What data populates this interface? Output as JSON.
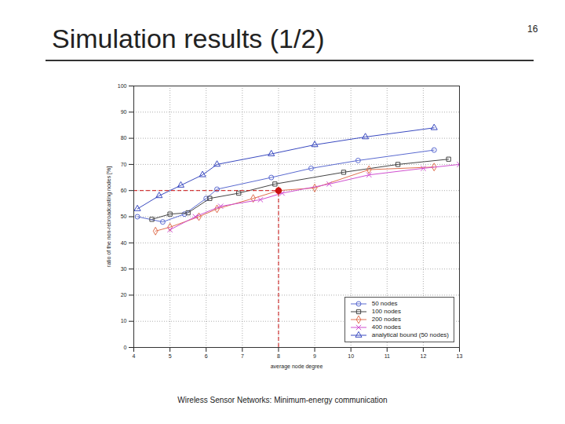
{
  "slide": {
    "title": "Simulation results (1/2)",
    "page": "16",
    "footer": "Wireless Sensor Networks: Minimum-energy communication"
  },
  "chart_data": {
    "type": "line",
    "x_label": "average node degree",
    "y_label": "ratio of the non-rebroadcasting nodes [%]",
    "xlim": [
      4,
      13
    ],
    "xticks": [
      4,
      5,
      6,
      7,
      8,
      9,
      10,
      11,
      12,
      13
    ],
    "ylim": [
      0,
      100
    ],
    "yticks": [
      0,
      10,
      20,
      30,
      40,
      50,
      60,
      70,
      80,
      90,
      100
    ],
    "grid": true,
    "legend": "lower right",
    "series": [
      {
        "name": "50 nodes",
        "color": "#5a6ad0",
        "marker": "circle",
        "line_style": "solid",
        "x": [
          4.1,
          4.8,
          5.4,
          6.0,
          6.3,
          7.8,
          8.9,
          10.2,
          12.3
        ],
        "values": [
          50,
          48,
          51,
          57,
          60.5,
          65,
          68.5,
          71.5,
          75.5
        ]
      },
      {
        "name": "100 nodes",
        "color": "#444444",
        "marker": "square",
        "line_style": "solid",
        "x": [
          4.5,
          5.0,
          5.5,
          6.1,
          6.9,
          7.9,
          9.8,
          11.3,
          12.7
        ],
        "values": [
          49,
          51,
          51.5,
          57,
          59,
          62.5,
          67,
          70,
          72
        ]
      },
      {
        "name": "200 nodes",
        "color": "#e07050",
        "marker": "diamond",
        "line_style": "solid",
        "x": [
          4.6,
          5.0,
          5.8,
          6.3,
          7.3,
          8.0,
          9.0,
          10.5,
          12.3
        ],
        "values": [
          44.5,
          46,
          50,
          53,
          57,
          60,
          61,
          68,
          69
        ]
      },
      {
        "name": "400 nodes",
        "color": "#d050d0",
        "marker": "times",
        "line_style": "solid",
        "x": [
          5.0,
          5.7,
          6.4,
          7.5,
          8.1,
          9.4,
          10.5,
          12.0,
          13.0
        ],
        "values": [
          45,
          50,
          54,
          56.5,
          59,
          62.5,
          66,
          68.5,
          70
        ]
      },
      {
        "name": "analytical bound (50 nodes)",
        "color": "#3a4ac0",
        "marker": "triangle",
        "line_style": "solid",
        "x": [
          4.1,
          4.7,
          5.3,
          5.9,
          6.3,
          7.8,
          9.0,
          10.4,
          12.3
        ],
        "values": [
          53,
          58,
          62,
          66,
          70,
          74,
          77.5,
          80.5,
          84
        ]
      }
    ],
    "highlight": {
      "x": 8,
      "y": 60,
      "color": "#cc1111",
      "line_style": "dashed"
    }
  }
}
